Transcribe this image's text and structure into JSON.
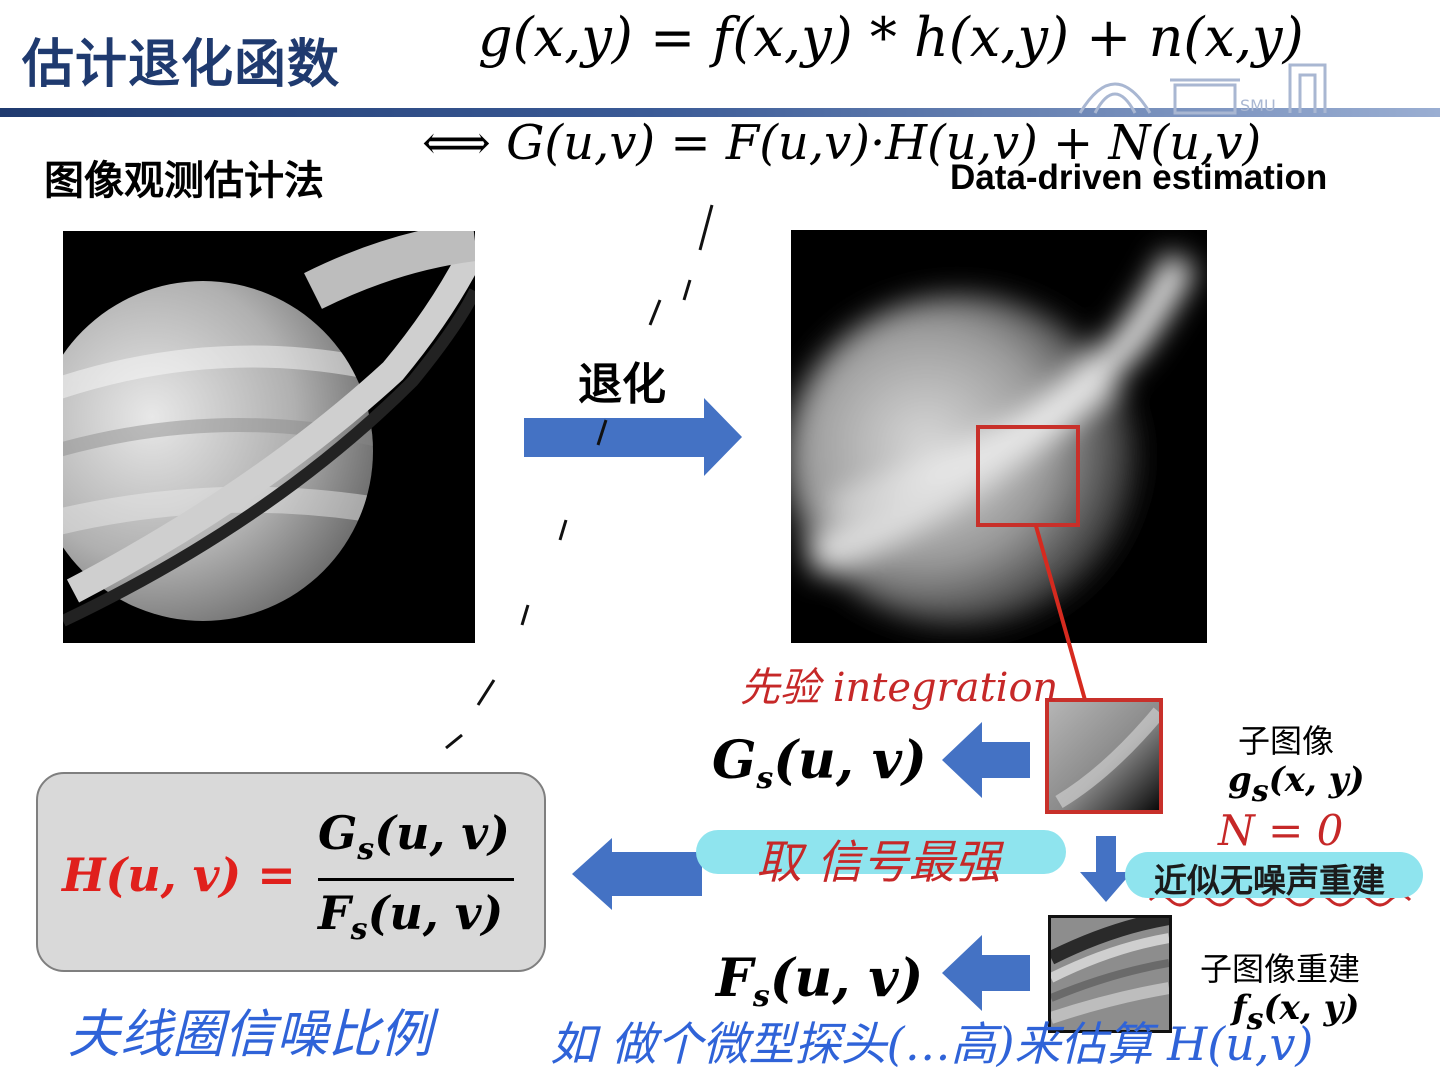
{
  "slide": {
    "title": "估计退化函数",
    "subtitle": "图像观测估计法",
    "data_driven": "Data-driven estimation",
    "degrade_label": "退化",
    "accent_color": "#1f3a6f",
    "arrow_color": "#4472c4",
    "highlight_color": "#c8302a"
  },
  "formulas": {
    "degradation_model": "g(x,y) = f(x,y) * h(x,y) + n(x,y)",
    "frequency_model": "⟺ G(u,v) = F(u,v)·H(u,v) + N(u,v)"
  },
  "math": {
    "Gs": {
      "base": "G",
      "sub": "s",
      "args": "(u, v)"
    },
    "Fs": {
      "base": "F",
      "sub": "s",
      "args": "(u, v)"
    },
    "H_lhs": "H(u, v) =",
    "H_num": {
      "base": "G",
      "sub": "s",
      "args": "(u, v)"
    },
    "H_den": {
      "base": "F",
      "sub": "s",
      "args": "(u, v)"
    }
  },
  "labels": {
    "sub_image": "子图像",
    "sub_image_math": {
      "base": "g",
      "sub": "s",
      "args": "(x, y)"
    },
    "sub_image_recon": "子图像重建",
    "sub_image_recon_math": {
      "base": "f",
      "sub": "s",
      "args": "(x, y)"
    },
    "approx_recon": "近似无噪声重建"
  },
  "annotations": {
    "prior": "先验 integration",
    "take_strong": "取 信号最强",
    "n_zero": "N = 0",
    "bottom_left": "夫线圈信噪比例",
    "bottom_right": "如 做个微型探头(…高)来估算 H(u,v)"
  },
  "icons": [
    "saturn-original-image",
    "saturn-degraded-image",
    "arrow-right-icon",
    "arrow-left-icon",
    "arrow-down-icon",
    "university-logo-icon"
  ]
}
